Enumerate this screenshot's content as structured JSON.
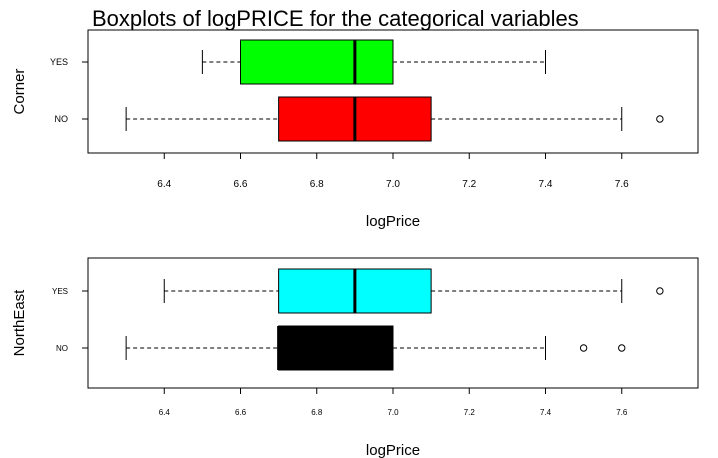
{
  "title": "Boxplots of logPRICE for the categorical variables",
  "chart_data": [
    {
      "type": "boxplot",
      "orientation": "horizontal",
      "ylabel": "Corner",
      "xlabel": "logPrice",
      "xlim": [
        6.2,
        7.8
      ],
      "ticks": [
        6.4,
        6.6,
        6.8,
        7.0,
        7.2,
        7.4,
        7.6
      ],
      "tick_labels": [
        "6.4",
        "6.6",
        "6.8",
        "7.0",
        "7.2",
        "7.4",
        "7.6"
      ],
      "groups": [
        {
          "label": "NO",
          "color": "#ff0000",
          "whisker_low": 6.3,
          "q1": 6.7,
          "median": 6.9,
          "q3": 7.1,
          "whisker_high": 7.6,
          "outliers": [
            7.7
          ]
        },
        {
          "label": "YES",
          "color": "#00ff00",
          "whisker_low": 6.5,
          "q1": 6.6,
          "median": 6.9,
          "q3": 7.0,
          "whisker_high": 7.4,
          "outliers": []
        }
      ]
    },
    {
      "type": "boxplot",
      "orientation": "horizontal",
      "ylabel": "NorthEast",
      "xlabel": "logPrice",
      "xlim": [
        6.2,
        7.8
      ],
      "ticks": [
        6.4,
        6.6,
        6.8,
        7.0,
        7.2,
        7.4,
        7.6
      ],
      "tick_labels": [
        "6.4",
        "6.6",
        "6.8",
        "7.0",
        "7.2",
        "7.4",
        "7.6"
      ],
      "groups": [
        {
          "label": "NO",
          "color": "#000000",
          "whisker_low": 6.3,
          "q1": 6.7,
          "median": 6.7,
          "q3": 7.0,
          "whisker_high": 7.4,
          "outliers": [
            7.5,
            7.6
          ]
        },
        {
          "label": "YES",
          "color": "#00ffff",
          "whisker_low": 6.4,
          "q1": 6.7,
          "median": 6.9,
          "q3": 7.1,
          "whisker_high": 7.6,
          "outliers": [
            7.7
          ]
        }
      ]
    }
  ]
}
